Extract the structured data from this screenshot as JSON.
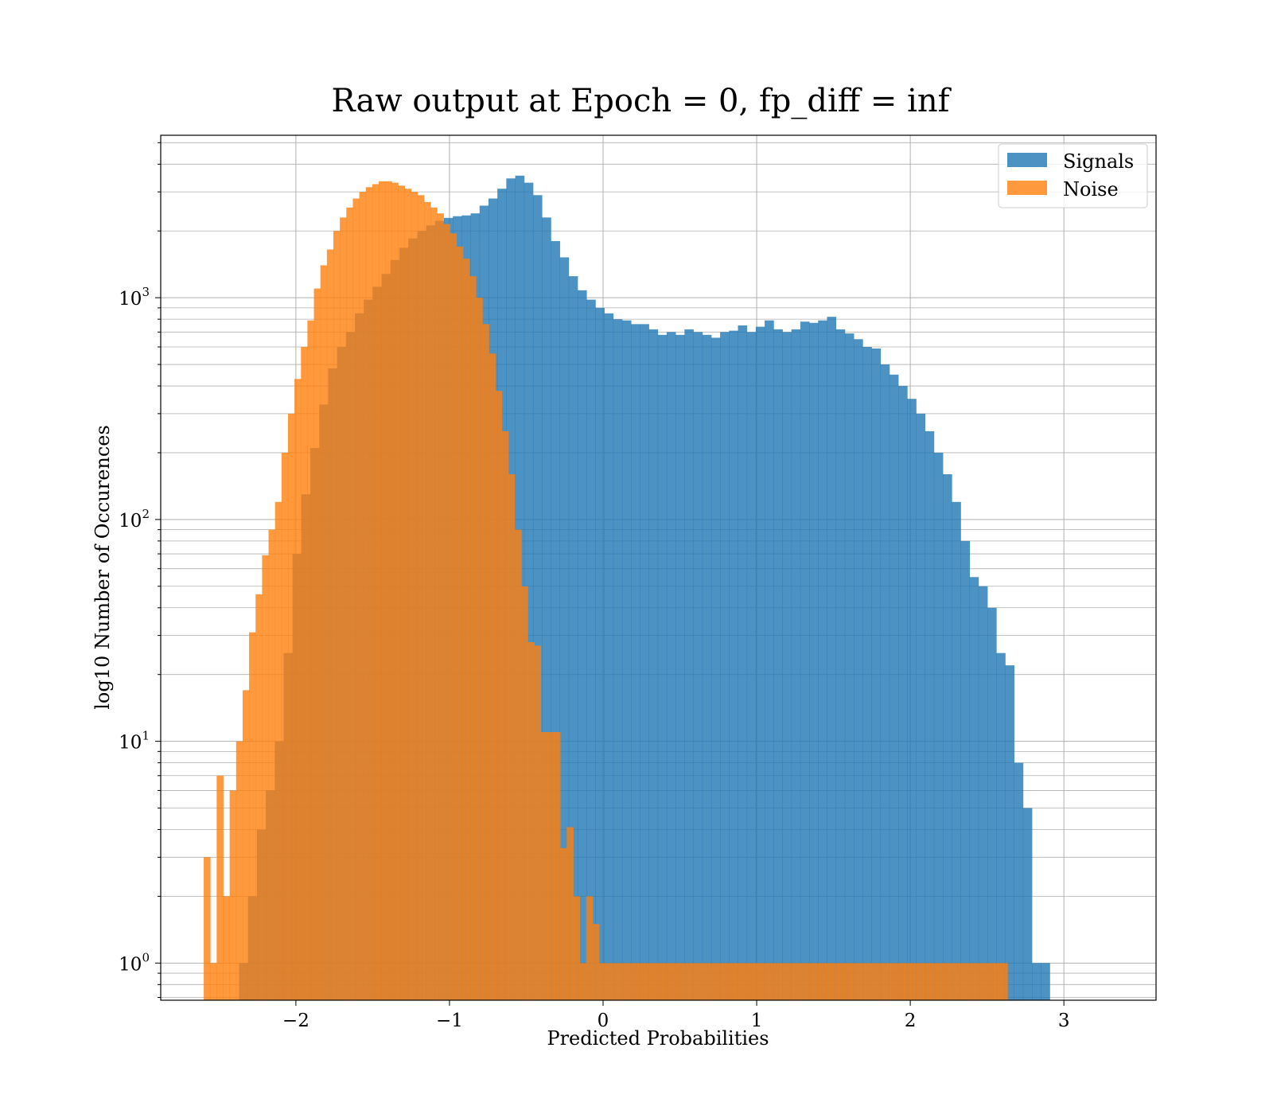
{
  "chart_data": {
    "type": "histogram",
    "title": "Raw output at Epoch = 0, fp_diff = inf",
    "xlabel": "Predicted Probabilities",
    "ylabel": "log10 Number of Occurences",
    "yscale": "log",
    "xlim": [
      -2.88,
      3.6
    ],
    "ylim": [
      0.68,
      5400
    ],
    "grid": true,
    "legend_position": "top-right",
    "x_ticks": [
      -2,
      -1,
      0,
      1,
      2,
      3
    ],
    "x_tick_labels": [
      "−2",
      "−1",
      "0",
      "1",
      "2",
      "3"
    ],
    "y_ticks": [
      1,
      10,
      100,
      1000
    ],
    "y_tick_labels": [
      {
        "base": "10",
        "exp": "0"
      },
      {
        "base": "10",
        "exp": "1"
      },
      {
        "base": "10",
        "exp": "2"
      },
      {
        "base": "10",
        "exp": "3"
      }
    ],
    "series": [
      {
        "name": "Signals",
        "color": "#1f77b4",
        "opacity": 0.8,
        "bin_start": -2.37,
        "bin_width": 0.058,
        "counts": [
          1,
          2,
          4,
          6,
          10,
          25,
          70,
          130,
          210,
          330,
          480,
          600,
          700,
          850,
          980,
          1120,
          1280,
          1480,
          1680,
          1850,
          2000,
          2120,
          2220,
          2290,
          2330,
          2350,
          2400,
          2600,
          2800,
          3100,
          3450,
          3550,
          3300,
          2900,
          2300,
          1800,
          1520,
          1250,
          1080,
          980,
          900,
          850,
          800,
          790,
          760,
          760,
          720,
          680,
          700,
          680,
          720,
          700,
          680,
          660,
          700,
          710,
          750,
          700,
          740,
          790,
          720,
          700,
          720,
          780,
          770,
          790,
          820,
          720,
          690,
          650,
          600,
          590,
          500,
          450,
          400,
          350,
          300,
          250,
          200,
          160,
          120,
          80,
          55,
          50,
          40,
          25,
          22,
          8,
          5,
          1,
          1
        ]
      },
      {
        "name": "Noise",
        "color": "#ff7f0e",
        "opacity": 0.8,
        "bin_start": -2.6,
        "bin_width": 0.0422,
        "counts": [
          3,
          1,
          7,
          2,
          6,
          10,
          17,
          31,
          46,
          69,
          90,
          120,
          200,
          300,
          430,
          600,
          790,
          1100,
          1400,
          1650,
          2000,
          2300,
          2550,
          2800,
          3000,
          3150,
          3250,
          3350,
          3350,
          3300,
          3200,
          3100,
          3000,
          2900,
          2700,
          2550,
          2400,
          2150,
          1950,
          1700,
          1500,
          1250,
          1000,
          760,
          560,
          380,
          250,
          160,
          90,
          50,
          28,
          27,
          11,
          11,
          11,
          3.3,
          4.1,
          2,
          1,
          2,
          1.5,
          1,
          1,
          1,
          1,
          1,
          1,
          1,
          1,
          1,
          1,
          1,
          1,
          1,
          1,
          1,
          1,
          1,
          1,
          1,
          1,
          1,
          1,
          1,
          1,
          1,
          1,
          1,
          1,
          1,
          1,
          1,
          1,
          1,
          1,
          1,
          1,
          1,
          1,
          1,
          1,
          1,
          1,
          1,
          1,
          1,
          1,
          1,
          1,
          1,
          1,
          1,
          1,
          1,
          1,
          1,
          1,
          1,
          1,
          1,
          1,
          1,
          1,
          1
        ]
      }
    ],
    "legend": [
      "Signals",
      "Noise"
    ]
  }
}
